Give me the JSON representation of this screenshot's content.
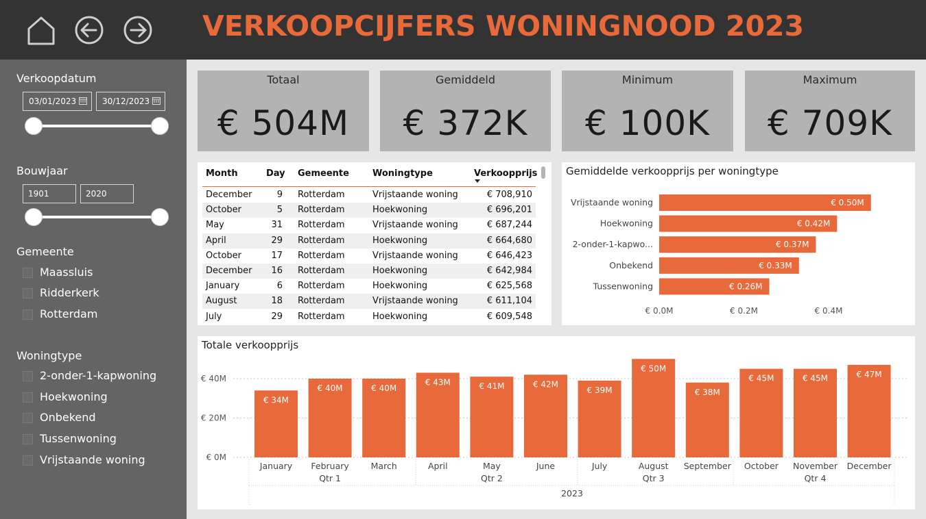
{
  "header": {
    "title": "VERKOOPCIJFERS WONINGNOOD 2023",
    "nav": [
      "home-icon",
      "back-icon",
      "forward-icon"
    ],
    "accent_color": "#e8693a",
    "background_color": "#333333"
  },
  "sidebar": {
    "verkoopdatum": {
      "label": "Verkoopdatum",
      "start": "03/01/2023",
      "end": "30/12/2023"
    },
    "bouwjaar": {
      "label": "Bouwjaar",
      "start": "1901",
      "end": "2020"
    },
    "gemeente": {
      "label": "Gemeente",
      "items": [
        "Maassluis",
        "Ridderkerk",
        "Rotterdam"
      ]
    },
    "woningtype": {
      "label": "Woningtype",
      "items": [
        "2-onder-1-kapwoning",
        "Hoekwoning",
        "Onbekend",
        "Tussenwoning",
        "Vrijstaande woning"
      ]
    }
  },
  "kpis": [
    {
      "label": "Totaal",
      "value": "€ 504M"
    },
    {
      "label": "Gemiddeld",
      "value": "€ 372K"
    },
    {
      "label": "Minimum",
      "value": "€ 100K"
    },
    {
      "label": "Maximum",
      "value": "€ 709K"
    }
  ],
  "table": {
    "headers": [
      "Month",
      "Day",
      "Gemeente",
      "Woningtype",
      "Verkoopprijs"
    ],
    "rows": [
      [
        "December",
        "9",
        "Rotterdam",
        "Vrijstaande woning",
        "€ 708,910"
      ],
      [
        "October",
        "5",
        "Rotterdam",
        "Hoekwoning",
        "€ 696,201"
      ],
      [
        "May",
        "31",
        "Rotterdam",
        "Vrijstaande woning",
        "€ 687,244"
      ],
      [
        "April",
        "29",
        "Rotterdam",
        "Hoekwoning",
        "€ 664,680"
      ],
      [
        "October",
        "17",
        "Rotterdam",
        "Vrijstaande woning",
        "€ 646,423"
      ],
      [
        "December",
        "16",
        "Rotterdam",
        "Hoekwoning",
        "€ 642,984"
      ],
      [
        "January",
        "6",
        "Rotterdam",
        "Hoekwoning",
        "€ 625,568"
      ],
      [
        "August",
        "18",
        "Rotterdam",
        "Vrijstaande woning",
        "€ 611,104"
      ],
      [
        "July",
        "29",
        "Rotterdam",
        "Hoekwoning",
        "€ 609,548"
      ]
    ]
  },
  "chart_data": [
    {
      "type": "bar",
      "orientation": "horizontal",
      "title": "Gemiddelde verkoopprijs per woningtype",
      "categories": [
        "Vrijstaande woning",
        "Hoekwoning",
        "2-onder-1-kapwo...",
        "Onbekend",
        "Tussenwoning"
      ],
      "values": [
        0.5,
        0.42,
        0.37,
        0.33,
        0.26
      ],
      "data_labels": [
        "€ 0.50M",
        "€ 0.42M",
        "€ 0.37M",
        "€ 0.33M",
        "€ 0.26M"
      ],
      "xticks": [
        "€ 0.0M",
        "€ 0.2M",
        "€ 0.4M"
      ],
      "xlim": [
        0,
        0.56
      ],
      "color": "#e8693a"
    },
    {
      "type": "bar",
      "title": "Totale verkoopprijs",
      "categories": [
        "January",
        "February",
        "March",
        "April",
        "May",
        "June",
        "July",
        "August",
        "September",
        "October",
        "November",
        "December"
      ],
      "values": [
        34,
        40,
        40,
        43,
        41,
        42,
        39,
        50,
        38,
        45,
        45,
        47
      ],
      "data_labels": [
        "€ 34M",
        "€ 40M",
        "€ 40M",
        "€ 43M",
        "€ 41M",
        "€ 42M",
        "€ 39M",
        "€ 50M",
        "€ 38M",
        "€ 45M",
        "€ 45M",
        "€ 47M"
      ],
      "quarters": [
        "Qtr 1",
        "Qtr 2",
        "Qtr 3",
        "Qtr 4"
      ],
      "year": "2023",
      "yticks": [
        "€ 0M",
        "€ 20M",
        "€ 40M"
      ],
      "ylim": [
        0,
        50
      ],
      "grid": true,
      "color": "#e8693a"
    }
  ]
}
